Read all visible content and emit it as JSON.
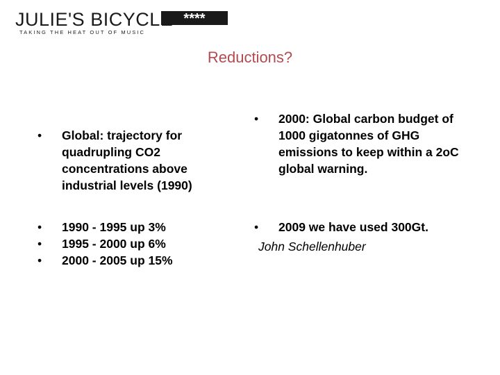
{
  "logo": {
    "wordmark": "JULIE'S BICYCLE",
    "tagline": "TAKING THE HEAT OUT OF MUSIC",
    "mark": "****"
  },
  "slide": {
    "title": "Reductions?",
    "left_top": [
      "Global: trajectory for quadrupling CO2 concentrations above industrial levels (1990)"
    ],
    "left_bottom": [
      "1990 - 1995  up 3%",
      "1995 - 2000 up 6%",
      "2000 - 2005 up 15%"
    ],
    "right_top": [
      "2000: Global carbon budget of 1000 gigatonnes of GHG emissions to keep within a 2oC global warning."
    ],
    "right_bottom": [
      "2009 we have used 300Gt."
    ],
    "author": "John Schellenhuber",
    "bullet_char": "•"
  },
  "colors": {
    "title": "#b24a4f",
    "text": "#000000",
    "logo": "#1a1a1a"
  }
}
